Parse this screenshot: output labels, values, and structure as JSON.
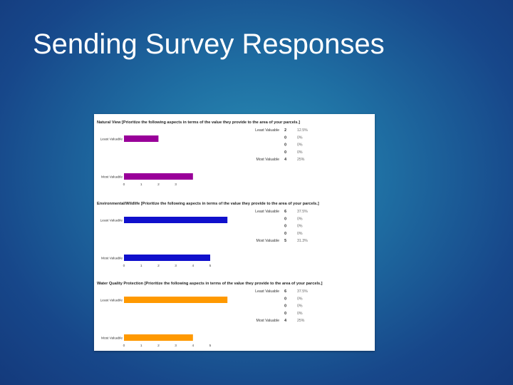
{
  "slide": {
    "title": "Sending Survey Responses"
  },
  "chart_data": [
    {
      "type": "bar",
      "title": "Natural View [Prioritize the following aspects in terms of the value they provide to the area of your parcels.]",
      "categories": [
        "Least Valuable",
        "",
        "",
        "",
        "Most Valuable"
      ],
      "visible_category_labels": [
        "Least Valuable",
        "Most Valuable"
      ],
      "counts": [
        2,
        0,
        0,
        0,
        4
      ],
      "percents": [
        "12.5%",
        "0%",
        "0%",
        "0%",
        "25%"
      ],
      "xticks": [
        0,
        1,
        2,
        3
      ],
      "xlim": [
        0,
        3.7
      ],
      "bar_color": "#990099",
      "bar_values": [
        2,
        4
      ]
    },
    {
      "type": "bar",
      "title": "Environmental/Wildlife [Prioritize the following aspects in terms of the value they provide to the area of your parcels.]",
      "categories": [
        "Least Valuable",
        "",
        "",
        "",
        "Most Valuable"
      ],
      "visible_category_labels": [
        "Least Valuable",
        "Most Valuable"
      ],
      "counts": [
        6,
        0,
        0,
        0,
        5
      ],
      "percents": [
        "37.5%",
        "0%",
        "0%",
        "0%",
        "31.3%"
      ],
      "xticks": [
        0,
        1,
        2,
        3,
        4,
        5
      ],
      "xlim": [
        0,
        6.1
      ],
      "bar_color": "#1010cc",
      "bar_values": [
        6,
        5
      ]
    },
    {
      "type": "bar",
      "title": "Water Quality Protection [Prioritize the following aspects in terms of the value they provide to the area of your parcels.]",
      "categories": [
        "Least Valuable",
        "",
        "",
        "",
        "Most Valuable"
      ],
      "visible_category_labels": [
        "Least Valuable",
        "Most Valuable"
      ],
      "counts": [
        6,
        0,
        0,
        0,
        4
      ],
      "percents": [
        "37.5%",
        "0%",
        "0%",
        "0%",
        "25%"
      ],
      "xticks": [
        0,
        1,
        2,
        3,
        4,
        5
      ],
      "xlim": [
        0,
        6.1
      ],
      "bar_color": "#ff9900",
      "bar_values": [
        6,
        4
      ]
    }
  ]
}
